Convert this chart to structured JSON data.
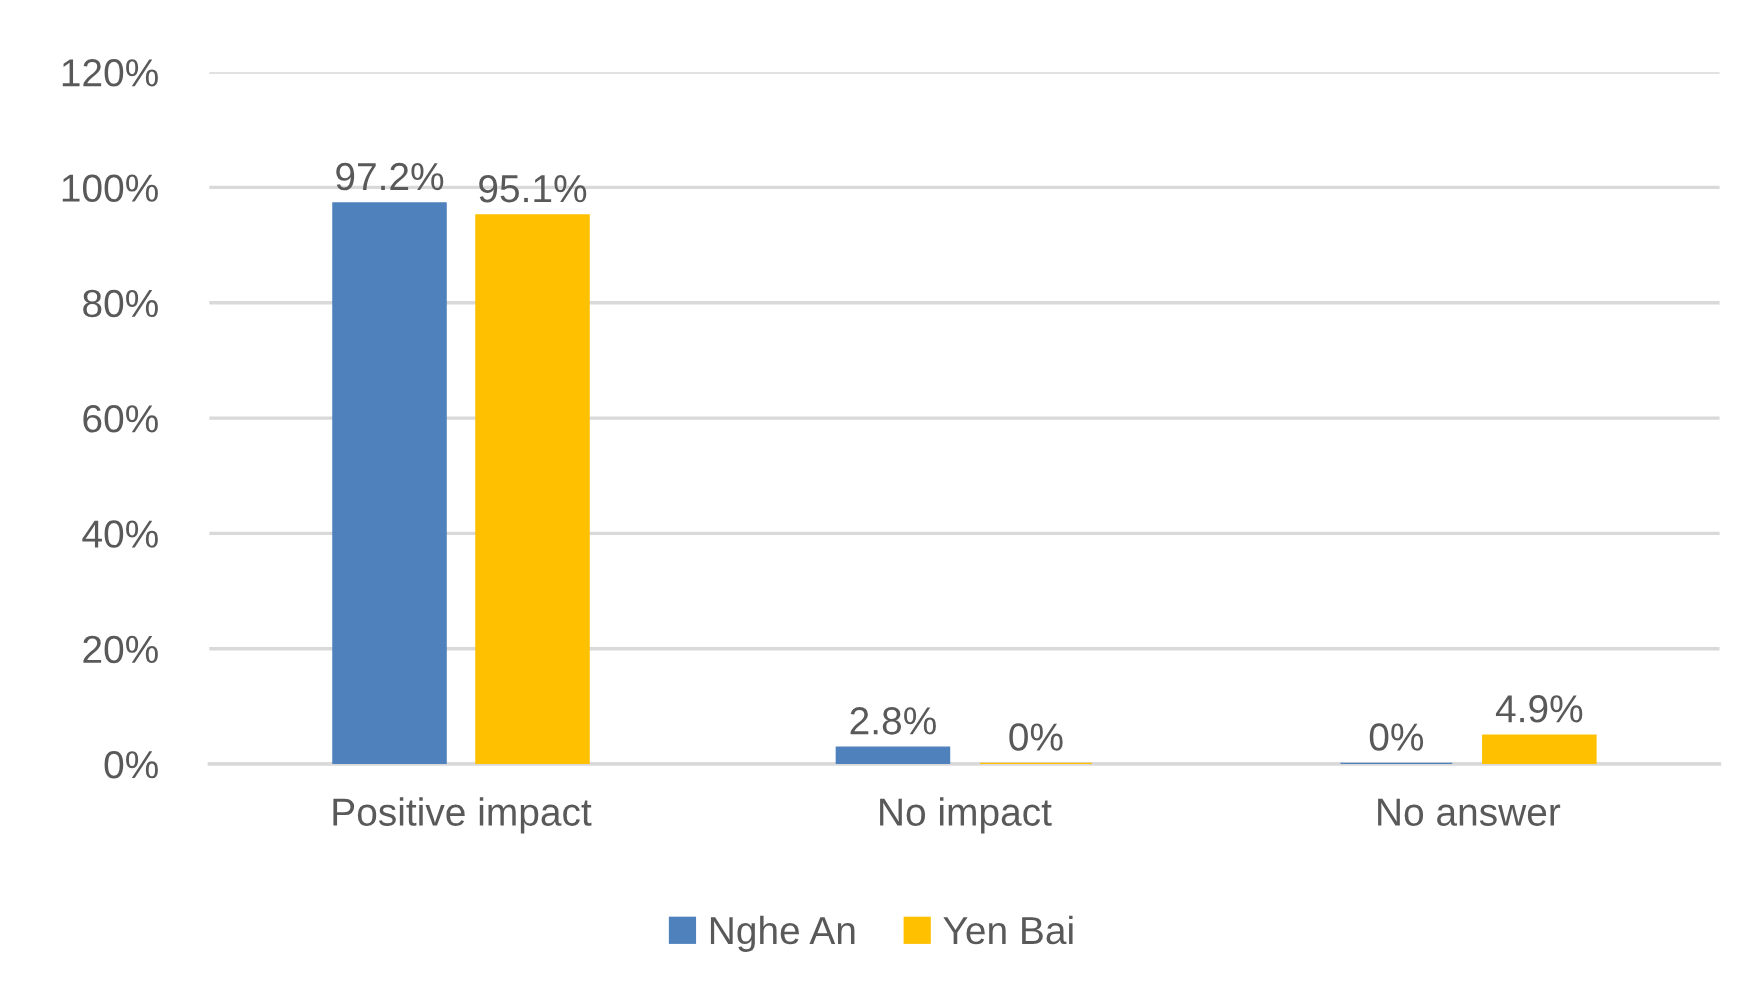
{
  "chart_data": {
    "type": "bar",
    "categories": [
      "Positive impact",
      "No impact",
      "No answer"
    ],
    "series": [
      {
        "name": "Nghe An",
        "color": "#4f81bd",
        "values": [
          97.2,
          2.8,
          0
        ],
        "value_labels": [
          "97.2%",
          "2.8%",
          "0%"
        ]
      },
      {
        "name": "Yen Bai",
        "color": "#ffc000",
        "values": [
          95.1,
          0,
          4.9
        ],
        "value_labels": [
          "95.1%",
          "0%",
          "4.9%"
        ]
      }
    ],
    "ylim": [
      0,
      120
    ],
    "yticks": [
      {
        "value": 0,
        "label": "0%"
      },
      {
        "value": 20,
        "label": "20%"
      },
      {
        "value": 40,
        "label": "40%"
      },
      {
        "value": 60,
        "label": "60%"
      },
      {
        "value": 80,
        "label": "80%"
      },
      {
        "value": 100,
        "label": "100%"
      },
      {
        "value": 120,
        "label": "120%"
      }
    ],
    "grid": "y",
    "legend": "bottom"
  }
}
